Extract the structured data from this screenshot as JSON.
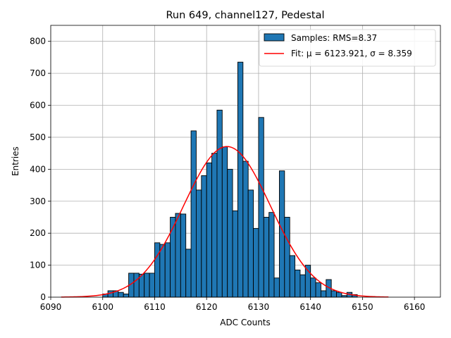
{
  "chart_data": {
    "type": "bar",
    "title": "Run 649, channel127, Pedestal",
    "xlabel": "ADC Counts",
    "ylabel": "Entries",
    "xlim": [
      6090,
      6165
    ],
    "ylim": [
      0,
      850
    ],
    "xticks": [
      6090,
      6100,
      6110,
      6120,
      6130,
      6140,
      6150,
      6160
    ],
    "yticks": [
      0,
      100,
      200,
      300,
      400,
      500,
      600,
      700,
      800
    ],
    "grid": true,
    "legend_position": "top-right",
    "bin_width": 1,
    "bin_starts": [
      6100,
      6101,
      6102,
      6103,
      6104,
      6105,
      6106,
      6107,
      6108,
      6109,
      6110,
      6111,
      6112,
      6113,
      6114,
      6115,
      6116,
      6117,
      6118,
      6119,
      6120,
      6121,
      6122,
      6123,
      6124,
      6125,
      6126,
      6127,
      6128,
      6129,
      6130,
      6131,
      6132,
      6133,
      6134,
      6135,
      6136,
      6137,
      6138,
      6139,
      6140,
      6141,
      6142,
      6143,
      6144,
      6145,
      6146,
      6147,
      6148
    ],
    "counts": [
      10,
      20,
      20,
      15,
      10,
      75,
      75,
      72,
      75,
      75,
      170,
      165,
      170,
      250,
      262,
      260,
      150,
      520,
      335,
      380,
      420,
      450,
      585,
      470,
      400,
      270,
      735,
      425,
      335,
      215,
      562,
      250,
      265,
      60,
      395,
      250,
      130,
      85,
      70,
      100,
      60,
      45,
      20,
      55,
      20,
      15,
      5,
      15,
      8
    ],
    "series": [
      {
        "name": "Samples: RMS=8.37",
        "kind": "histogram",
        "color": "#1f77b4",
        "rms": 8.37
      },
      {
        "name": "Fit: μ = 6123.921, σ = 8.359",
        "kind": "gaussian",
        "color": "#ff0000",
        "mu": 6123.921,
        "sigma": 8.359,
        "amplitude": 471,
        "x_range": [
          6092,
          6155
        ]
      }
    ]
  }
}
